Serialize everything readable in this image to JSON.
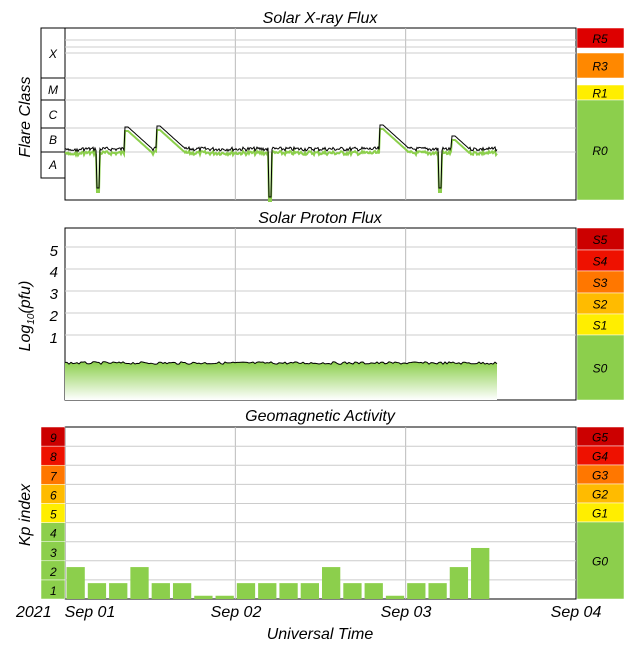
{
  "chart_data": [
    {
      "type": "line",
      "title": "Solar X-ray Flux",
      "ylabel": "Flare Class",
      "class_labels": [
        "X",
        "M",
        "C",
        "B",
        "A"
      ],
      "x_dates": [
        "Sep 01",
        "Sep 02",
        "Sep 03",
        "Sep 04"
      ],
      "series": [
        {
          "values": [
            [
              "2021-09-01T00:00",
              "B"
            ],
            [
              "2021-09-01T08:00",
              "B"
            ],
            [
              "2021-09-01T12:00",
              "B/C"
            ],
            [
              "2021-09-02T00:00",
              "B"
            ],
            [
              "2021-09-02T04:00",
              "A"
            ],
            [
              "2021-09-02T12:00",
              "B"
            ],
            [
              "2021-09-02T18:00",
              "B/C"
            ],
            [
              "2021-09-03T12:00",
              "B"
            ]
          ]
        }
      ],
      "scale_labels": [
        "R5",
        "R3",
        "R1",
        "R0"
      ],
      "scale_colors": [
        "#dd0000",
        "#ff8800",
        "#ffee00",
        "#8ccf4c"
      ]
    },
    {
      "type": "area",
      "title": "Solar Proton Flux",
      "ylabel": "Log10(pfu)",
      "ylabel_parts": {
        "pre": "Log",
        "sub": "10",
        "post": "(pfu)"
      },
      "ytick_labels": [
        "1",
        "2",
        "3",
        "4",
        "5"
      ],
      "scale_labels": [
        "S5",
        "S4",
        "S3",
        "S2",
        "S1",
        "S0"
      ],
      "scale_colors": [
        "#cc0000",
        "#ee1100",
        "#ff7700",
        "#ffbb00",
        "#ffee00",
        "#8ccf4c"
      ]
    },
    {
      "type": "bar",
      "title": "Geomagnetic Activity",
      "ylabel": "Kp index",
      "kp_labels": [
        "1",
        "2",
        "3",
        "4",
        "5",
        "6",
        "7",
        "8",
        "9"
      ],
      "kp_colors": [
        "#8ccf4c",
        "#8ccf4c",
        "#8ccf4c",
        "#8ccf4c",
        "#ffee00",
        "#ffbb00",
        "#ff7700",
        "#ee1100",
        "#cc0000"
      ],
      "kp_values": [
        1.67,
        0.83,
        0.83,
        1.67,
        0.83,
        0.83,
        0.17,
        0.17,
        0.83,
        0.83,
        0.83,
        0.83,
        1.67,
        0.83,
        0.83,
        0.17,
        0.83,
        0.83,
        1.67,
        2.67
      ],
      "interval_hours": 3,
      "scale_labels": [
        "G5",
        "G4",
        "G3",
        "G2",
        "G1",
        "G0"
      ],
      "scale_colors": [
        "#cc0000",
        "#ee1100",
        "#ff7700",
        "#ffbb00",
        "#ffee00",
        "#8ccf4c"
      ]
    }
  ],
  "x_axis": {
    "year": "2021",
    "tick_labels": [
      "Sep 01",
      "Sep 02",
      "Sep 03",
      "Sep 04"
    ],
    "label": "Universal Time"
  }
}
